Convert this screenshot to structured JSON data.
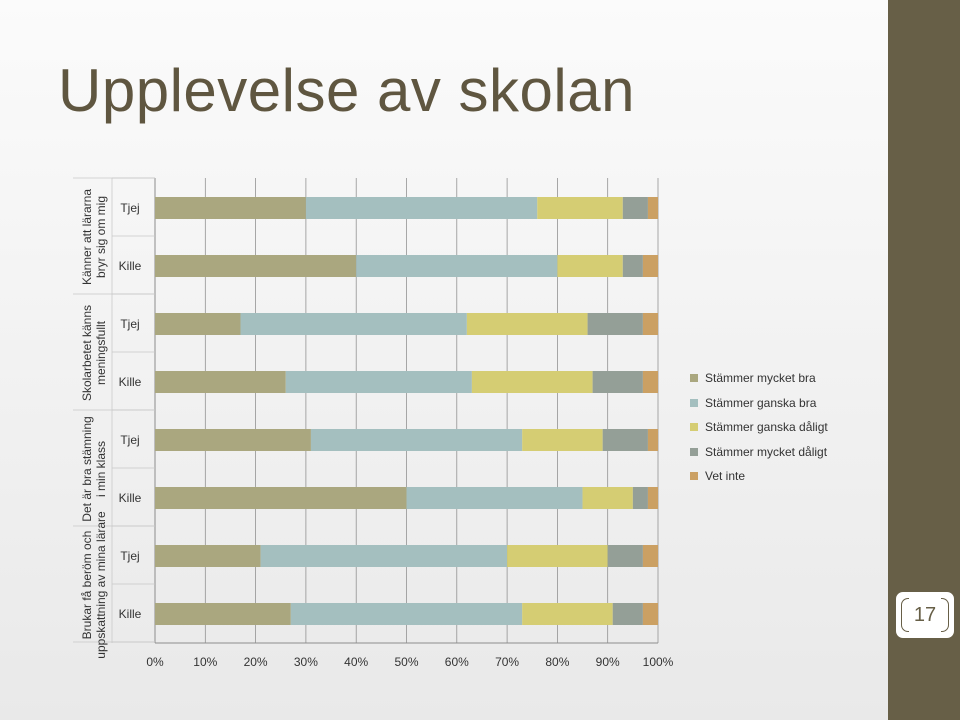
{
  "slide": {
    "title": "Upplevelse av skolan",
    "page_number": "17"
  },
  "colors": {
    "title": "#5f5640",
    "sidebar": "#675f47",
    "series": [
      "#aaa77f",
      "#a4bfbf",
      "#d5cd73",
      "#949f97",
      "#cba063"
    ]
  },
  "chart_data": {
    "type": "bar",
    "orientation": "horizontal",
    "stacked": "percent",
    "xlim": [
      0,
      100
    ],
    "x_tick_labels": [
      "0%",
      "10%",
      "20%",
      "30%",
      "40%",
      "50%",
      "60%",
      "70%",
      "80%",
      "90%",
      "100%"
    ],
    "grid": true,
    "legend_position": "right",
    "groups": [
      {
        "label": "Känner att lärarna bryr sig om mig",
        "categories": [
          "Tjej",
          "Kille"
        ]
      },
      {
        "label": "Skolarbetet känns meningsfullt",
        "categories": [
          "Tjej",
          "Kille"
        ]
      },
      {
        "label": "Det är bra stämning i min klass",
        "categories": [
          "Tjej",
          "Kille"
        ]
      },
      {
        "label": "Brukar få beröm och uppskattning av mina lärare",
        "categories": [
          "Tjej",
          "Kille"
        ]
      }
    ],
    "categories": [
      "Tjej",
      "Kille",
      "Tjej",
      "Kille",
      "Tjej",
      "Kille",
      "Tjej",
      "Kille"
    ],
    "series": [
      {
        "name": "Stämmer mycket bra",
        "values": [
          30,
          40,
          17,
          26,
          31,
          50,
          21,
          27
        ]
      },
      {
        "name": "Stämmer ganska bra",
        "values": [
          46,
          40,
          45,
          37,
          42,
          35,
          49,
          46
        ]
      },
      {
        "name": "Stämmer ganska dåligt",
        "values": [
          17,
          13,
          24,
          24,
          16,
          10,
          20,
          18
        ]
      },
      {
        "name": "Stämmer mycket dåligt",
        "values": [
          5,
          4,
          11,
          10,
          9,
          3,
          7,
          6
        ]
      },
      {
        "name": "Vet inte",
        "values": [
          2,
          3,
          3,
          3,
          2,
          2,
          3,
          3
        ]
      }
    ]
  }
}
